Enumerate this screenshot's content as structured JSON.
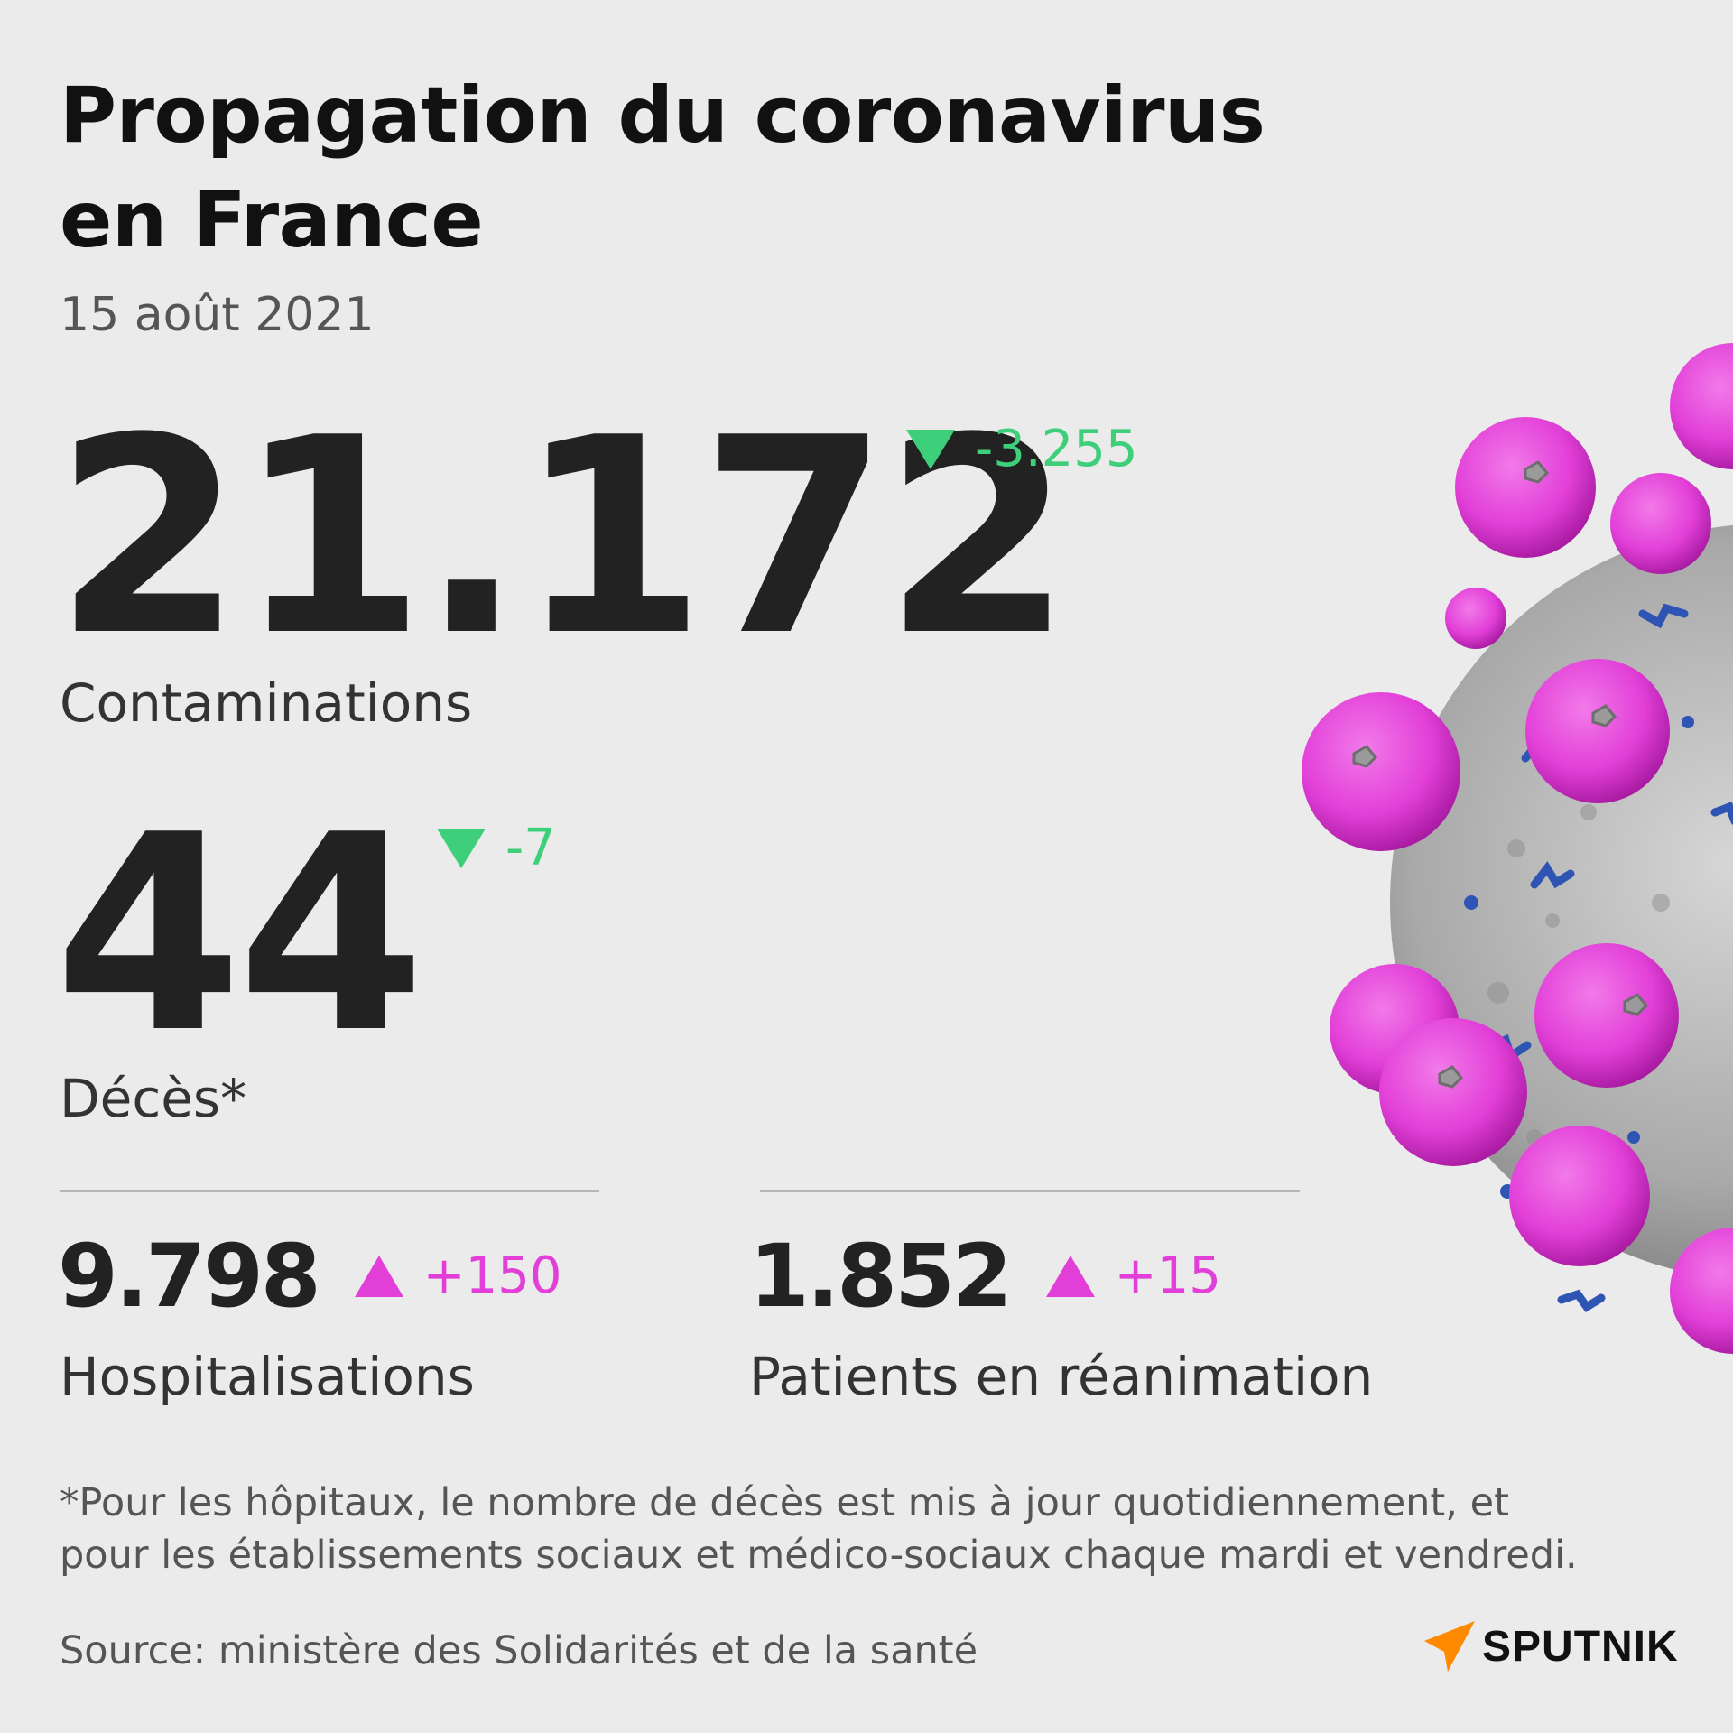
{
  "header": {
    "title_line1": "Propagation du coronavirus",
    "title_line2": "en France",
    "date": "15 août 2021"
  },
  "stats": {
    "contaminations": {
      "value": "21.172",
      "label": "Contaminations",
      "delta": "-3.255",
      "direction": "down"
    },
    "deces": {
      "value": "44",
      "label": "Décès*",
      "delta": "-7",
      "direction": "down"
    },
    "hospitalisations": {
      "value": "9.798",
      "label": "Hospitalisations",
      "delta": "+150",
      "direction": "up"
    },
    "reanimation": {
      "value": "1.852",
      "label": "Patients en réanimation",
      "delta": "+15",
      "direction": "up"
    }
  },
  "footer": {
    "footnote_line1": "*Pour les hôpitaux, le nombre de décès est mis à jour quotidiennement, et",
    "footnote_line2": "pour les établissements sociaux et médico-sociaux chaque mardi et vendredi.",
    "source": "Source: ministère des Solidarités et de la santé",
    "logo_text": "SPUTNIK"
  },
  "colors": {
    "background": "#ebebeb",
    "decrease": "#3dcf7a",
    "increase": "#e23fd8",
    "logo_accent": "#ff8a00",
    "virus_spike": "#e23fd8",
    "virus_body": "#b9b9b9",
    "virus_protein": "#2f55b4"
  },
  "icons": {
    "decrease": "triangle-down-icon",
    "increase": "triangle-up-icon",
    "logo": "sputnik-logo-icon",
    "illustration": "coronavirus-illustration"
  }
}
